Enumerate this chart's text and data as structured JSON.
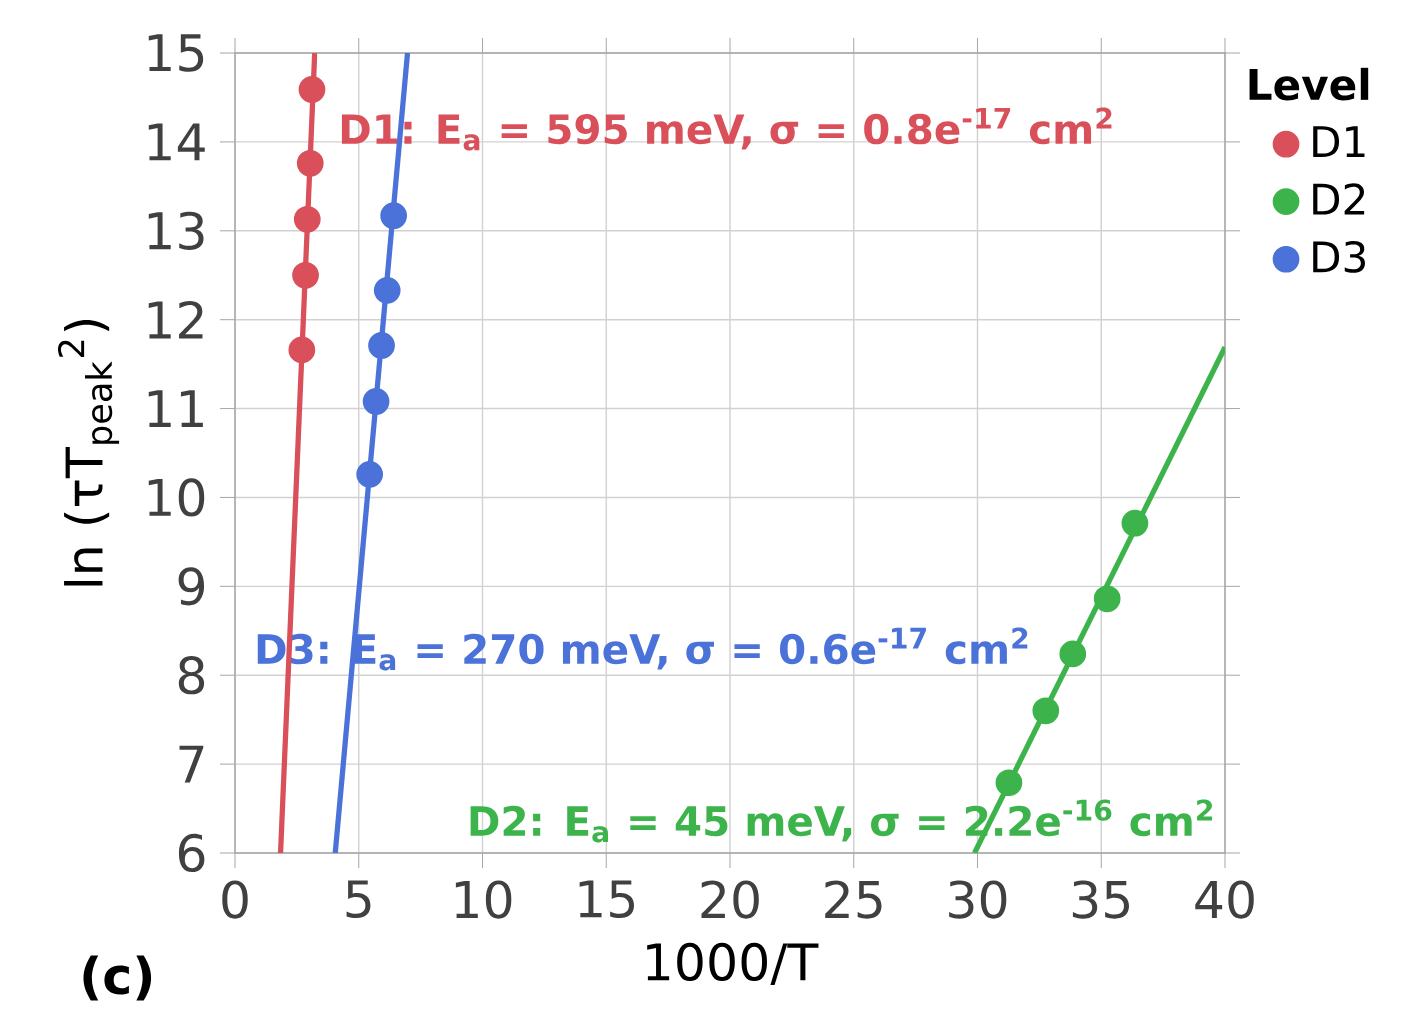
{
  "chart_data": {
    "type": "scatter",
    "xlabel": "1000/T",
    "ylabel": "ln (τT$_{peak}$$^{2}$)",
    "legend_title": "Level",
    "xlim": [
      0,
      40
    ],
    "ylim": [
      6,
      15
    ],
    "xticks": [
      0,
      5,
      10,
      15,
      20,
      25,
      30,
      35,
      40
    ],
    "yticks": [
      6,
      7,
      8,
      9,
      10,
      11,
      12,
      13,
      14,
      15
    ],
    "grid": true,
    "legend": "right",
    "series": [
      {
        "name": "D1",
        "marker": "circle",
        "color": "#d9505a",
        "x": [
          3.11,
          3.04,
          2.92,
          2.85,
          2.7
        ],
        "values": [
          14.59,
          13.76,
          13.13,
          12.5,
          11.66
        ]
      },
      {
        "name": "D2",
        "marker": "circle",
        "color": "#3cb44b",
        "x": [
          31.27,
          32.76,
          33.85,
          35.24,
          36.36
        ],
        "values": [
          6.79,
          7.6,
          8.24,
          8.86,
          9.71
        ]
      },
      {
        "name": "D3",
        "marker": "circle",
        "color": "#4a72d8",
        "x": [
          6.41,
          6.15,
          5.92,
          5.7,
          5.44
        ],
        "values": [
          13.17,
          12.33,
          11.71,
          11.08,
          10.26
        ]
      },
      {
        "type": "line",
        "marker": "none",
        "color": "#d9505a",
        "x": [
          1.84,
          3.22
        ],
        "values": [
          6,
          15
        ]
      },
      {
        "type": "line",
        "marker": "none",
        "color": "#3cb44b",
        "x": [
          29.88,
          40
        ],
        "values": [
          6,
          11.69
        ]
      },
      {
        "type": "line",
        "marker": "none",
        "color": "#4a72d8",
        "x": [
          4.05,
          6.97
        ],
        "values": [
          6,
          15
        ]
      }
    ],
    "annotations": [
      "D1: E$_{a}$ = 595 meV, σ = 0.8e$^{-17}$ cm$^{2}$",
      "D2: E$_{a}$ = 45 meV, σ = 2.2e$^{-16}$ cm$^{2}$",
      "D3: E$_{a}$ = 270 meV, σ = 0.6e$^{-17}$ cm$^{2}$",
      "(c)"
    ]
  }
}
